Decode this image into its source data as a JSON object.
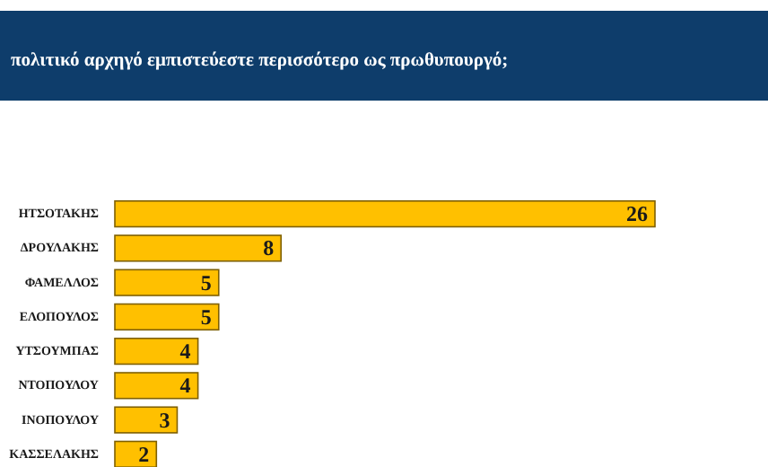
{
  "chart_data": {
    "type": "bar",
    "orientation": "horizontal",
    "title": "πολιτικό αρχηγό εμπιστεύεστε περισσότερο ως πρωθυπουργό;",
    "categories": [
      "ΗΤΣΟΤΑΚΗΣ",
      "ΔΡΟΥΛΑΚΗΣ",
      "ΦΑΜΕΛΛΟΣ",
      "ΕΛΟΠΟΥΛΟΣ",
      "ΥΤΣΟΥΜΠΑΣ",
      "ΝΤΟΠΟΥΛΟΥ",
      "ΙΝΟΠΟΥΛΟΥ",
      "ΚΑΣΣΕΛΑΚΗΣ"
    ],
    "values": [
      26,
      8,
      5,
      5,
      4,
      4,
      3,
      2
    ],
    "color": "#ffc000",
    "data_labels": true
  }
}
